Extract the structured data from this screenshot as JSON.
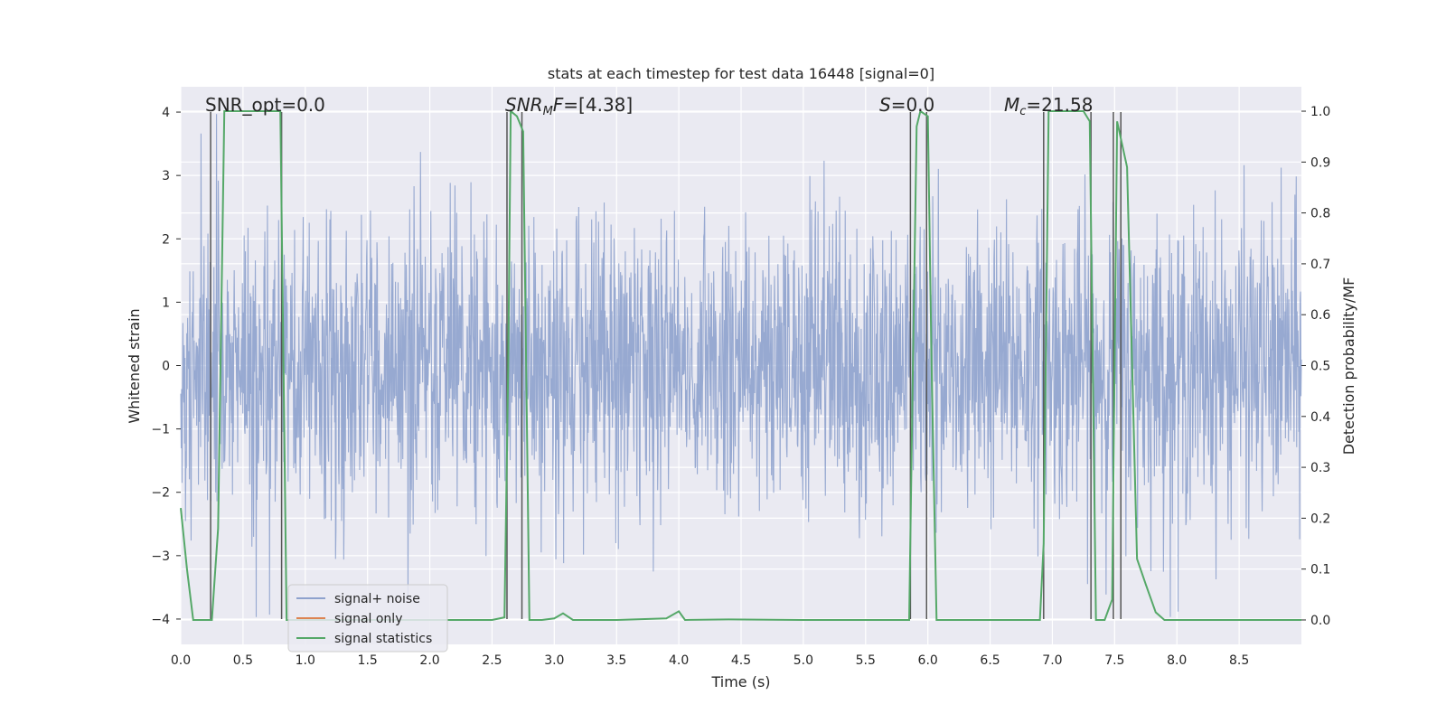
{
  "chart_data": {
    "type": "line",
    "title": "stats at each timestep for test data 16448 [signal=0]",
    "xlabel": "Time (s)",
    "ylabel": "Whitened strain",
    "y2label": "Detection probability/MF",
    "xlim": [
      0.0,
      9.0
    ],
    "ylim": [
      -4.4,
      4.4
    ],
    "y2lim": [
      -0.048,
      1.048
    ],
    "xticks": [
      0.0,
      0.5,
      1.0,
      1.5,
      2.0,
      2.5,
      3.0,
      3.5,
      4.0,
      4.5,
      5.0,
      5.5,
      6.0,
      6.5,
      7.0,
      7.5,
      8.0,
      8.5
    ],
    "yticks": [
      4,
      3,
      2,
      1,
      0,
      -1,
      -2,
      -3,
      -4
    ],
    "y2ticks": [
      1.0,
      0.9,
      0.8,
      0.7,
      0.6,
      0.5,
      0.4,
      0.3,
      0.2,
      0.1,
      0.0
    ],
    "annotations": {
      "snr_opt": "SNR_opt=0.0",
      "snr_mf": "=[4.38]",
      "s": "=0.0",
      "mc": "=21.58"
    },
    "legend": {
      "placement": "lower-left",
      "entries": [
        "signal+ noise",
        "signal only",
        "signal statistics"
      ]
    },
    "colors": {
      "noise": "#8ea2cd",
      "signal": "#dd8452",
      "stats": "#55a868",
      "vline": "#555555",
      "plot_bg": "#eaeaf2"
    },
    "noise_series": {
      "name": "signal+ noise",
      "description_range": [
        -4.0,
        4.0
      ]
    },
    "stats_series": {
      "name": "signal statistics",
      "x": [
        0.0,
        0.05,
        0.1,
        0.15,
        0.2,
        0.25,
        0.3,
        0.35,
        0.4,
        0.5,
        0.6,
        0.7,
        0.8,
        0.82,
        0.85,
        0.9,
        1.0,
        1.5,
        2.0,
        2.5,
        2.6,
        2.63,
        2.65,
        2.7,
        2.75,
        2.8,
        2.9,
        3.0,
        3.07,
        3.15,
        3.5,
        3.9,
        4.0,
        4.05,
        4.4,
        5.0,
        5.5,
        5.85,
        5.88,
        5.91,
        5.94,
        6.0,
        6.03,
        6.07,
        6.2,
        6.5,
        6.9,
        6.93,
        6.97,
        7.0,
        7.25,
        7.3,
        7.35,
        7.42,
        7.48,
        7.52,
        7.6,
        7.68,
        7.75,
        7.83,
        7.9,
        8.5,
        9.0
      ],
      "y": [
        0.22,
        0.1,
        0.0,
        0.0,
        0.0,
        0.0,
        0.18,
        1.0,
        1.0,
        1.0,
        1.0,
        1.0,
        1.0,
        0.6,
        0.0,
        0.0,
        0.0,
        0.0,
        0.0,
        0.0,
        0.005,
        0.5,
        1.0,
        0.99,
        0.96,
        0.0,
        0.0,
        0.003,
        0.013,
        0.0,
        0.0,
        0.003,
        0.017,
        0.0,
        0.001,
        0.0,
        0.0,
        0.0,
        0.5,
        0.97,
        1.0,
        0.99,
        0.5,
        0.0,
        0.0,
        0.0,
        0.0,
        0.15,
        1.0,
        1.0,
        1.0,
        0.98,
        0.0,
        0.0,
        0.04,
        0.98,
        0.89,
        0.12,
        0.07,
        0.015,
        0.0,
        0.0,
        0.0
      ]
    },
    "vlines": [
      0.24,
      0.81,
      2.62,
      2.74,
      5.86,
      5.99,
      6.93,
      7.31,
      7.49,
      7.55
    ]
  }
}
